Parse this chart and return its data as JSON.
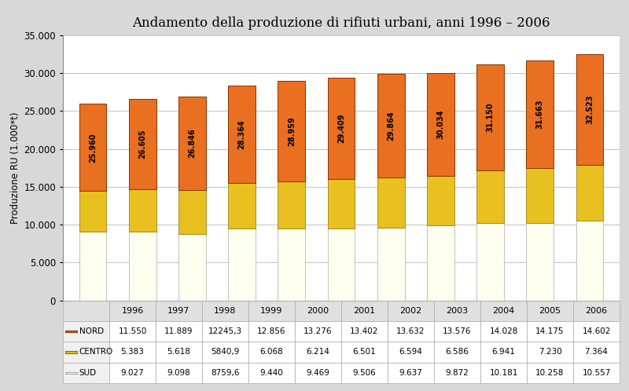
{
  "title": "Andamento della produzione di rifiuti urbani, anni 1996 – 2006",
  "ylabel": "Produzione RU (1.000*t)",
  "years": [
    1996,
    1997,
    1998,
    1999,
    2000,
    2001,
    2002,
    2003,
    2004,
    2005,
    2006
  ],
  "nord": [
    11550,
    11889,
    12245.3,
    12856,
    13276,
    13402,
    13632,
    13576,
    14028,
    14175,
    14602
  ],
  "centro": [
    5383,
    5618,
    5840.9,
    6068,
    6214,
    6501,
    6594,
    6586,
    6941,
    7230,
    7364
  ],
  "sud": [
    9027,
    9098,
    8759.6,
    9440,
    9469,
    9506,
    9637,
    9872,
    10181,
    10258,
    10557
  ],
  "totals_label": [
    "25.960",
    "26.605",
    "26.846",
    "28.364",
    "28.959",
    "29.409",
    "29.864",
    "30.034",
    "31.150",
    "31.663",
    "32.523"
  ],
  "color_nord": "#E87020",
  "color_centro": "#E8C020",
  "color_sud": "#FFFFF0",
  "color_nord_edge": "#8B3000",
  "color_centro_edge": "#8B7000",
  "color_sud_edge": "#AAAAAA",
  "ylim": [
    0,
    35000
  ],
  "yticks": [
    0,
    5000,
    10000,
    15000,
    20000,
    25000,
    30000,
    35000
  ],
  "ytick_labels": [
    "0",
    "5.000",
    "10.000",
    "15.000",
    "20.000",
    "25.000",
    "30.000",
    "35.000"
  ],
  "bar_width": 0.55,
  "table_rows": [
    [
      "NORD",
      "11.550",
      "11.889",
      "12245,3",
      "12.856",
      "13.276",
      "13.402",
      "13.632",
      "13.576",
      "14.028",
      "14.175",
      "14.602"
    ],
    [
      "CENTRO",
      "5.383",
      "5.618",
      "5840,9",
      "6.068",
      "6.214",
      "6.501",
      "6.594",
      "6.586",
      "6.941",
      "7.230",
      "7.364"
    ],
    [
      "SUD",
      "9.027",
      "9.098",
      "8759,6",
      "9.440",
      "9.469",
      "9.506",
      "9.637",
      "9.872",
      "10.181",
      "10.258",
      "10.557"
    ]
  ]
}
